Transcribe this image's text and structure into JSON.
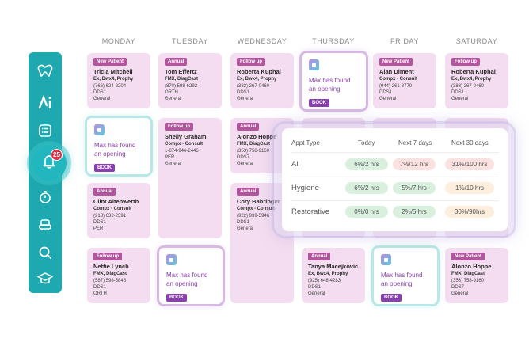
{
  "days": [
    "MONDAY",
    "TUESDAY",
    "WEDNESDAY",
    "THURSDAY",
    "FRIDAY",
    "SATURDAY"
  ],
  "sidebar": {
    "badge": "25",
    "icons": [
      "tooth-logo-icon",
      "ai-icon",
      "checklist-icon",
      "bell-icon",
      "stopwatch-icon",
      "chair-icon",
      "search-icon",
      "graduation-cap-icon"
    ]
  },
  "max": {
    "text1": "Max has found",
    "text2": "an opening",
    "book": "BOOK"
  },
  "cards": {
    "mon1": {
      "tag": "New Patient",
      "name": "Tricia Mitchell",
      "proc": "Ex, Bwx4, Prophy",
      "phone": "(766) 624-2204",
      "dr": "DDS1",
      "type": "General"
    },
    "mon3": {
      "tag": "Annual",
      "name": "Clint Altenwerth",
      "proc": "Compx - Consult",
      "phone": "(213) 632-2391",
      "dr": "DDS1",
      "type": "PER"
    },
    "mon4": {
      "tag": "Follow up",
      "name": "Nettie Lynch",
      "proc": "FMX, DiagCast",
      "phone": "(587) 598-5846",
      "dr": "DDS1",
      "type": "ORTH"
    },
    "tue1": {
      "tag": "Annual",
      "name": "Tom Effertz",
      "proc": "FMX, DiagCast",
      "phone": "(870) 598-6292",
      "dr": "ORTH",
      "type": "General"
    },
    "tue2": {
      "tag": "Follow up",
      "name": "Shelly Graham",
      "proc": "Compx - Consult",
      "phone": "1-874-946-2446",
      "dr": "PER",
      "type": "General"
    },
    "wed1": {
      "tag": "Follow up",
      "name": "Roberta Kuphal",
      "proc": "Ex, Bwx4, Prophy",
      "phone": "(383) 267-0460",
      "dr": "DDS1",
      "type": "General"
    },
    "wed2": {
      "tag": "Annual",
      "name": "Alonzo Hoppe",
      "proc": "FMX, DiagCast",
      "phone": "(353) 758-9160",
      "dr": "DDS7",
      "type": "General"
    },
    "wed3": {
      "tag": "Annual",
      "name": "Cory Bahringer",
      "proc": "Compx - Consult",
      "phone": "(922) 939-5946",
      "dr": "DDS1",
      "type": "General"
    },
    "thu4": {
      "tag": "Annual",
      "name": "Tanya Macejkovic",
      "proc": "Ex, Bwx4, Prophy",
      "phone": "(925) 648-4283",
      "dr": "DDS1",
      "type": "General"
    },
    "fri1": {
      "tag": "New Patient",
      "name": "Alan Diment",
      "proc": "Compx - Consult",
      "phone": "(944) 261-8770",
      "dr": "DDS1",
      "type": "General"
    },
    "sat1": {
      "tag": "Follow up",
      "name": "Roberta Kuphal",
      "proc": "Ex, Bwx4, Prophy",
      "phone": "(383) 267-0460",
      "dr": "DDS1",
      "type": "General"
    },
    "sat4": {
      "tag": "New Patient",
      "name": "Alonzo Hoppe",
      "proc": "FMX, DiagCast",
      "phone": "(353) 758-9160",
      "dr": "DDS7",
      "type": "General"
    }
  },
  "popup": {
    "headers": [
      "Appt Type",
      "Today",
      "Next 7 days",
      "Next 30 days"
    ],
    "rows": [
      {
        "label": "All",
        "today": "6%/2 hrs",
        "next7": "7%/12 hrs",
        "next30": "31%/100 hrs"
      },
      {
        "label": "Hygiene",
        "today": "6%/2 hrs",
        "next7": "5%/7 hrs",
        "next30": "1%/10 hrs"
      },
      {
        "label": "Restorative",
        "today": "0%/0 hrs",
        "next7": "2%/5 hrs",
        "next30": "30%/90hrs"
      }
    ]
  }
}
